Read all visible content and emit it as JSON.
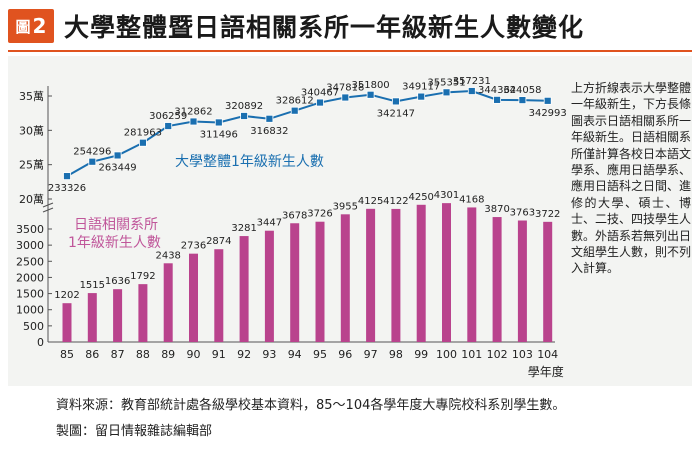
{
  "header": {
    "figure_label": "圖",
    "figure_number": "2",
    "title": "大學整體暨日語相關系所一年級新生人數變化"
  },
  "note": "上方折線表示大學整體一年級新生，下方長條圖表示日語相關系所一年級新生。日語相關系所僅計算各校日本語文學系、應用日語學系、應用日語科之日間、進修的大學、碩士、博士、二技、四技學生人數。外語系若無列出日文組學生人數，則不列入計算。",
  "footer": {
    "source": "資料來源：教育部統計處各級學校基本資料，85～104各學年度大專院校科系別學生數。",
    "maker": "製圖：留日情報雜誌編輯部"
  },
  "colors": {
    "accent": "#e0531f",
    "line": "#1a6fb0",
    "bar": "#b9438d",
    "line_label": "#1a6fb0",
    "bar_label": "#c0569a"
  },
  "chart_data": [
    {
      "type": "line",
      "series": [
        {
          "name": "大學整體1年級新生人數",
          "values": [
            233326,
            254296,
            263449,
            281963,
            306259,
            312862,
            311496,
            320892,
            316832,
            328612,
            340467,
            347818,
            351800,
            342147,
            349117,
            355351,
            357231,
            344362,
            344058,
            342993
          ]
        }
      ],
      "categories": [
        "85",
        "86",
        "87",
        "88",
        "89",
        "90",
        "91",
        "92",
        "93",
        "94",
        "95",
        "96",
        "97",
        "98",
        "99",
        "100",
        "101",
        "102",
        "103",
        "104"
      ],
      "yticks": [
        "20萬",
        "25萬",
        "30萬",
        "35萬"
      ],
      "ylim": [
        200000,
        370000
      ]
    },
    {
      "type": "bar",
      "series": [
        {
          "name": "日語相關系所1年級新生人數",
          "values": [
            1202,
            1515,
            1636,
            1792,
            2438,
            2736,
            2874,
            3281,
            3447,
            3678,
            3726,
            3955,
            4125,
            4122,
            4250,
            4301,
            4168,
            3870,
            3763,
            3722
          ]
        }
      ],
      "categories": [
        "85",
        "86",
        "87",
        "88",
        "89",
        "90",
        "91",
        "92",
        "93",
        "94",
        "95",
        "96",
        "97",
        "98",
        "99",
        "100",
        "101",
        "102",
        "103",
        "104"
      ],
      "xlabel": "學年度",
      "yticks": [
        "0",
        "500",
        "1000",
        "1500",
        "2000",
        "2500",
        "3000",
        "3500"
      ],
      "ylim": [
        0,
        4500
      ]
    }
  ]
}
